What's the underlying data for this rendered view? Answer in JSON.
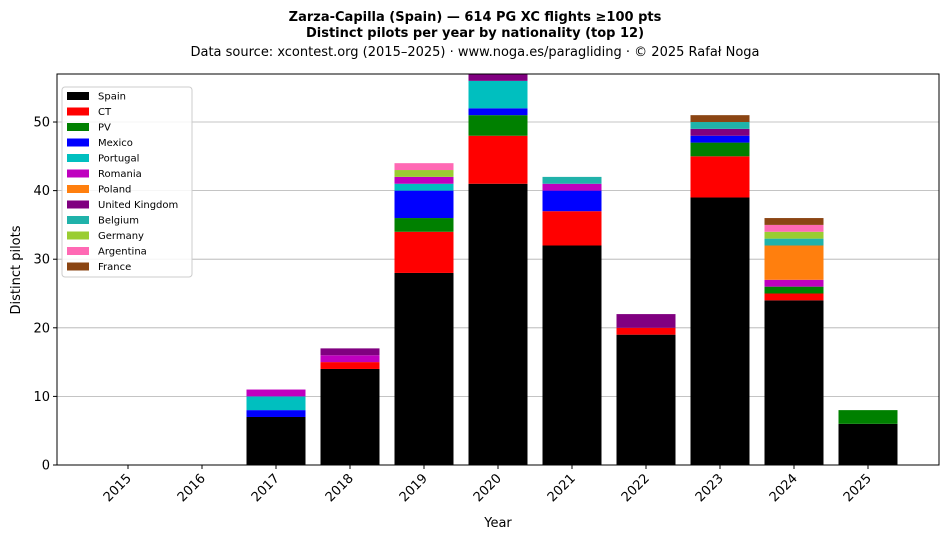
{
  "chart_data": {
    "type": "bar",
    "stacked": true,
    "title_line1": "Zarza-Capilla (Spain)  —  614 PG XC flights ≥100 pts",
    "title_line2": "Distinct pilots per year by nationality (top 12)",
    "subtitle": "Data source: xcontest.org (2015–2025)  ·  www.noga.es/paragliding  ·  © 2025 Rafał Noga",
    "xlabel": "Year",
    "ylabel": "Distinct pilots",
    "ylim": [
      0,
      57
    ],
    "yticks": [
      0,
      10,
      20,
      30,
      40,
      50
    ],
    "grid": "horizontal",
    "legend_position": "top-left",
    "categories": [
      "2015",
      "2016",
      "2017",
      "2018",
      "2019",
      "2020",
      "2021",
      "2022",
      "2023",
      "2024",
      "2025"
    ],
    "series": [
      {
        "name": "Spain",
        "color": "#000000",
        "values": [
          0,
          0,
          7,
          14,
          28,
          41,
          32,
          19,
          39,
          24,
          6
        ]
      },
      {
        "name": "CT",
        "color": "#ff0000",
        "values": [
          0,
          0,
          0,
          1,
          6,
          7,
          5,
          1,
          6,
          1,
          0
        ]
      },
      {
        "name": "PV",
        "color": "#008000",
        "values": [
          0,
          0,
          0,
          0,
          2,
          3,
          0,
          0,
          2,
          1,
          2
        ]
      },
      {
        "name": "Mexico",
        "color": "#0000ff",
        "values": [
          0,
          0,
          1,
          0,
          4,
          1,
          3,
          0,
          1,
          0,
          0
        ]
      },
      {
        "name": "Portugal",
        "color": "#00bfbf",
        "values": [
          0,
          0,
          2,
          0,
          1,
          4,
          0,
          0,
          0,
          0,
          0
        ]
      },
      {
        "name": "Romania",
        "color": "#bf00bf",
        "values": [
          0,
          0,
          1,
          1,
          1,
          0,
          1,
          0,
          0,
          1,
          0
        ]
      },
      {
        "name": "Poland",
        "color": "#ff7f0e",
        "values": [
          0,
          0,
          0,
          0,
          0,
          0,
          0,
          0,
          0,
          5,
          0
        ]
      },
      {
        "name": "United Kingdom",
        "color": "#800080",
        "values": [
          0,
          0,
          0,
          1,
          0,
          1,
          0,
          2,
          1,
          0,
          0
        ]
      },
      {
        "name": "Belgium",
        "color": "#20b2aa",
        "values": [
          0,
          0,
          0,
          0,
          0,
          0,
          1,
          0,
          1,
          1,
          0
        ]
      },
      {
        "name": "Germany",
        "color": "#9acd32",
        "values": [
          0,
          0,
          0,
          0,
          1,
          0,
          0,
          0,
          0,
          1,
          0
        ]
      },
      {
        "name": "Argentina",
        "color": "#ff69b4",
        "values": [
          0,
          0,
          0,
          0,
          1,
          0,
          0,
          0,
          0,
          1,
          0
        ]
      },
      {
        "name": "France",
        "color": "#8b4513",
        "values": [
          0,
          0,
          0,
          0,
          0,
          0,
          0,
          0,
          1,
          1,
          0
        ]
      }
    ]
  }
}
